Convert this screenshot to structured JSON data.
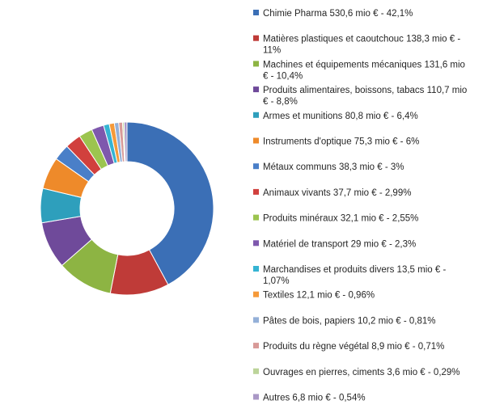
{
  "chart_data": {
    "type": "pie",
    "donut": true,
    "title": "",
    "legend_position": "right",
    "slices": [
      {
        "label": "Chimie Pharma",
        "value": 530.6,
        "percent": "42,1%",
        "legend_lines": [
          "Chimie Pharma 530,6 mio € - 42,1%"
        ],
        "color": "#3b6fb6"
      },
      {
        "label": "Matières plastiques et caoutchouc",
        "value": 138.3,
        "percent": "11%",
        "legend_lines": [
          "Matières plastiques et caoutchouc 138,3 mio € -",
          "11%"
        ],
        "color": "#bf3b38"
      },
      {
        "label": "Machines et équipements mécaniques",
        "value": 131.6,
        "percent": "10,4%",
        "legend_lines": [
          "Machines et équipements mécaniques 131,6 mio",
          "€ - 10,4%"
        ],
        "color": "#8db443"
      },
      {
        "label": "Produits alimentaires, boissons, tabacs",
        "value": 110.7,
        "percent": "8,8%",
        "legend_lines": [
          "Produits alimentaires, boissons, tabacs 110,7 mio",
          "€ - 8,8%"
        ],
        "color": "#6f4a9a"
      },
      {
        "label": "Armes et munitions",
        "value": 80.8,
        "percent": "6,4%",
        "legend_lines": [
          "Armes et munitions 80,8 mio € - 6,4%"
        ],
        "color": "#2e9fbc"
      },
      {
        "label": "Instruments d'optique",
        "value": 75.3,
        "percent": "6%",
        "legend_lines": [
          "Instruments d'optique 75,3 mio € - 6%"
        ],
        "color": "#ee8a2a"
      },
      {
        "label": "Métaux communs",
        "value": 38.3,
        "percent": "3%",
        "legend_lines": [
          "Métaux communs 38,3 mio € - 3%"
        ],
        "color": "#4a7fc8"
      },
      {
        "label": "Animaux vivants",
        "value": 37.7,
        "percent": "2,99%",
        "legend_lines": [
          "Animaux vivants 37,7 mio € - 2,99%"
        ],
        "color": "#d1403d"
      },
      {
        "label": "Produits minéraux",
        "value": 32.1,
        "percent": "2,55%",
        "legend_lines": [
          "Produits minéraux 32,1 mio € - 2,55%"
        ],
        "color": "#9cc44f"
      },
      {
        "label": "Matériel de transport",
        "value": 29,
        "percent": "2,3%",
        "legend_lines": [
          "Matériel de transport 29 mio € - 2,3%"
        ],
        "color": "#7e58ad"
      },
      {
        "label": "Marchandises et produits divers",
        "value": 13.5,
        "percent": "1,07%",
        "legend_lines": [
          "Marchandises et produits divers 13,5 mio € -",
          "1,07%"
        ],
        "color": "#35b4d3"
      },
      {
        "label": "Textiles",
        "value": 12.1,
        "percent": "0,96%",
        "legend_lines": [
          "Textiles 12,1 mio € - 0,96%"
        ],
        "color": "#f59a3a"
      },
      {
        "label": "Pâtes de bois, papiers",
        "value": 10.2,
        "percent": "0,81%",
        "legend_lines": [
          "Pâtes de bois, papiers 10,2 mio € - 0,81%"
        ],
        "color": "#94b0d8"
      },
      {
        "label": "Produits du règne végétal",
        "value": 8.9,
        "percent": "0,71%",
        "legend_lines": [
          "Produits du règne végétal 8,9 mio € - 0,71%"
        ],
        "color": "#d89a98"
      },
      {
        "label": "Ouvrages en pierres, ciments",
        "value": 3.6,
        "percent": "0,29%",
        "legend_lines": [
          "Ouvrages en pierres, ciments 3,6 mio € - 0,29%"
        ],
        "color": "#bcd49a"
      },
      {
        "label": "Autres",
        "value": 6.8,
        "percent": "0,54%",
        "legend_lines": [
          "Autres 6,8 mio € - 0,54%"
        ],
        "color": "#aa98c6"
      }
    ]
  }
}
